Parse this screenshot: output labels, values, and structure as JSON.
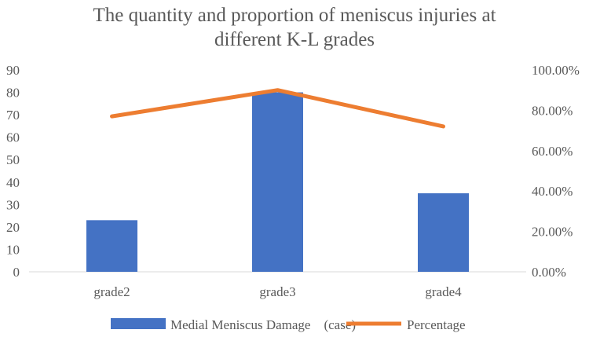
{
  "chart_data": {
    "type": "bar",
    "title_lines": [
      "The quantity and proportion of meniscus injuries at",
      "different K-L grades"
    ],
    "categories": [
      "grade2",
      "grade3",
      "grade4"
    ],
    "series": [
      {
        "name": "Medial Meniscus Damage　(case)",
        "type": "bar",
        "axis": "left",
        "values": [
          23,
          80,
          35
        ],
        "color": "#4472C4"
      },
      {
        "name": "Percentage",
        "type": "line",
        "axis": "right",
        "values": [
          0.77,
          0.9,
          0.72
        ],
        "color": "#ED7D31"
      }
    ],
    "y_left": {
      "min": 0,
      "max": 90,
      "step": 10,
      "ticks": [
        "0",
        "10",
        "20",
        "30",
        "40",
        "50",
        "60",
        "70",
        "80",
        "90"
      ]
    },
    "y_right": {
      "min": 0,
      "max": 1.0,
      "step": 0.2,
      "ticks": [
        "0.00%",
        "20.00%",
        "40.00%",
        "60.00%",
        "80.00%",
        "100.00%"
      ]
    },
    "grid": false,
    "legend_position": "bottom"
  }
}
